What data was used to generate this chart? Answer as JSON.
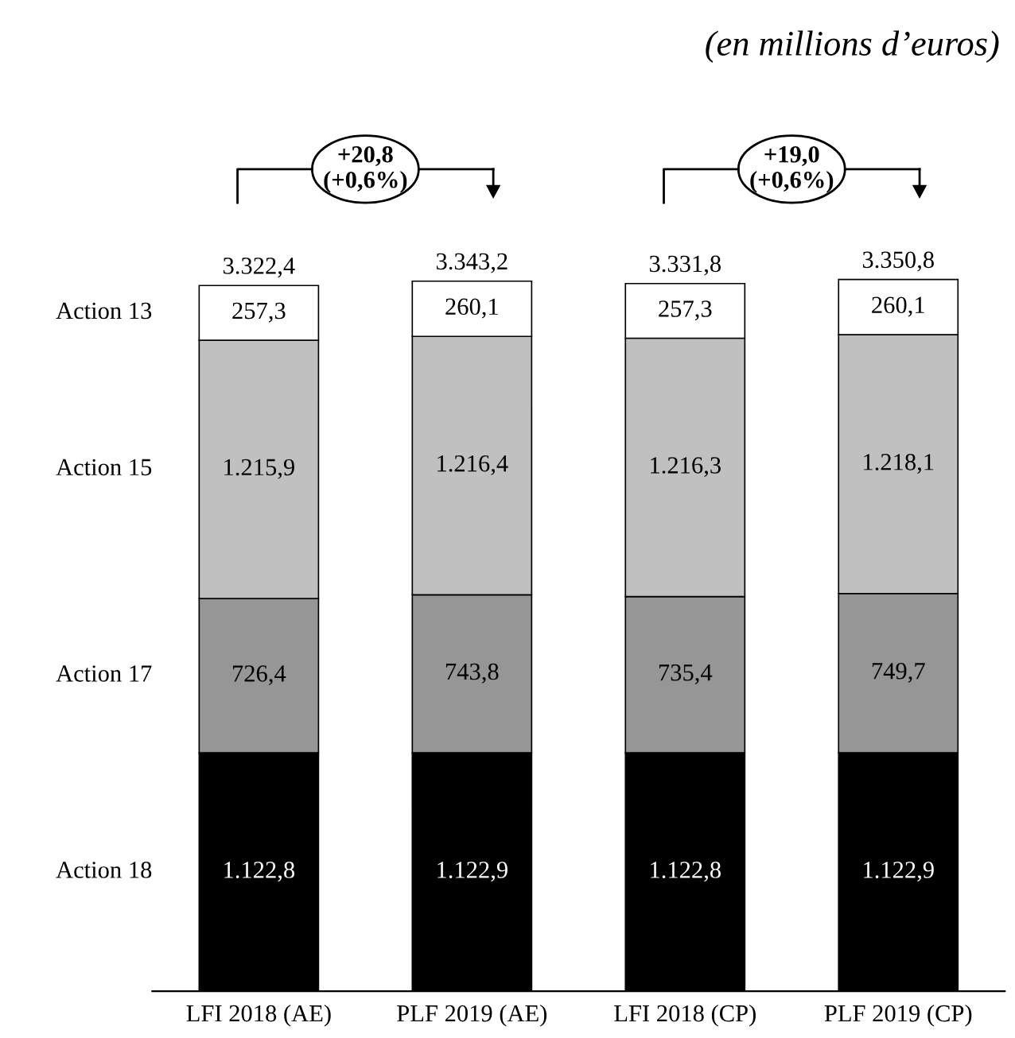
{
  "chart_data": {
    "type": "bar",
    "stacked": true,
    "title": "(en millions d’euros)",
    "categories": [
      "LFI 2018 (AE)",
      "PLF 2019 (AE)",
      "LFI 2018 (CP)",
      "PLF 2019 (CP)"
    ],
    "series": [
      {
        "name": "Action 18",
        "color": "#000000",
        "values": [
          1122.8,
          1122.9,
          1122.8,
          1122.9
        ],
        "value_labels": [
          "1.122,8",
          "1.122,9",
          "1.122,8",
          "1.122,9"
        ]
      },
      {
        "name": "Action 17",
        "color": "#969696",
        "values": [
          726.4,
          743.8,
          735.4,
          749.7
        ],
        "value_labels": [
          "726,4",
          "743,8",
          "735,4",
          "749,7"
        ]
      },
      {
        "name": "Action 15",
        "color": "#c0c0c0",
        "values": [
          1215.9,
          1216.4,
          1216.3,
          1218.1
        ],
        "value_labels": [
          "1.215,9",
          "1.216,4",
          "1.216,3",
          "1.218,1"
        ]
      },
      {
        "name": "Action 13",
        "color": "#ffffff",
        "values": [
          257.3,
          260.1,
          257.3,
          260.1
        ],
        "value_labels": [
          "257,3",
          "260,1",
          "257,3",
          "260,1"
        ]
      }
    ],
    "totals": [
      "3.322,4",
      "3.343,2",
      "3.331,8",
      "3.350,8"
    ],
    "annotations": [
      "+20,8\n(+0,6%)",
      "+19,0\n(+0,6%)"
    ],
    "legend": false,
    "grid": false
  }
}
